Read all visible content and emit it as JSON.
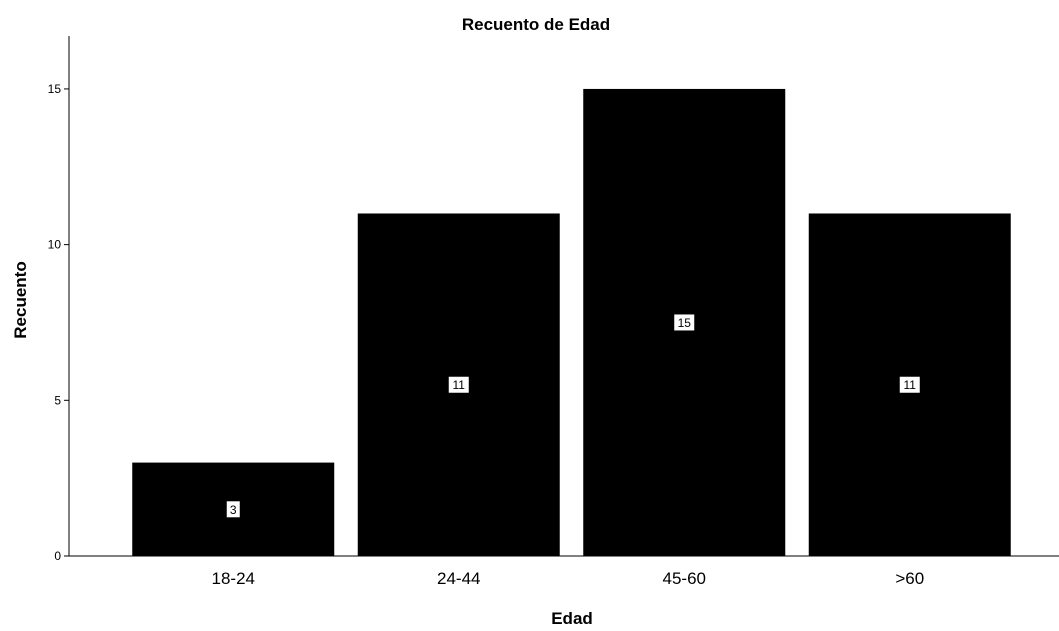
{
  "chart_data": {
    "type": "bar",
    "title": "Recuento de Edad",
    "xlabel": "Edad",
    "ylabel": "Recuento",
    "categories": [
      "18-24",
      "24-44",
      "45-60",
      ">60"
    ],
    "values": [
      3,
      11,
      15,
      11
    ],
    "data_labels": [
      "3",
      "11",
      "15",
      "11"
    ],
    "yticks": [
      0,
      5,
      10,
      15
    ],
    "ylim": [
      0,
      16.7
    ],
    "grid": false,
    "legend": "none",
    "colors": {
      "bar": "#000000",
      "label_box": "#ffffff",
      "axis": "#000000"
    }
  }
}
